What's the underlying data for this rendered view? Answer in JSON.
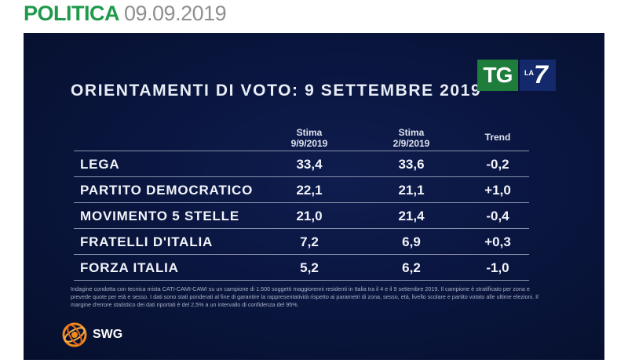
{
  "header": {
    "section": "POLITICA",
    "date": "09.09.2019"
  },
  "panel": {
    "title": "ORIENTAMENTI DI VOTO: 9 SETTEMBRE 2019",
    "broadcaster_logo": {
      "tg": "TG",
      "la": "LA",
      "seven": "7"
    },
    "columns": {
      "estimate_current": {
        "line1": "Stima",
        "line2": "9/9/2019"
      },
      "estimate_previous": {
        "line1": "Stima",
        "line2": "2/9/2019"
      },
      "trend": "Trend"
    },
    "rows": [
      {
        "party": "LEGA",
        "current": "33,4",
        "previous": "33,6",
        "trend": "-0,2"
      },
      {
        "party": "PARTITO DEMOCRATICO",
        "current": "22,1",
        "previous": "21,1",
        "trend": "+1,0"
      },
      {
        "party": "MOVIMENTO 5 STELLE",
        "current": "21,0",
        "previous": "21,4",
        "trend": "-0,4"
      },
      {
        "party": "FRATELLI D'ITALIA",
        "current": "7,2",
        "previous": "6,9",
        "trend": "+0,3"
      },
      {
        "party": "FORZA ITALIA",
        "current": "5,2",
        "previous": "6,2",
        "trend": "-1,0"
      }
    ],
    "footnote": "Indagine condotta con tecnica mista CATI-CAMI-CAWI su un campione di 1.500 soggetti maggiorenni residenti in Italia tra il 4 e il 9 settembre 2019. Il campione è stratificato per zona e prevede quote per età e sesso. I dati sono stati ponderati al fine di garantire la rappresentatività rispetto ai parametri di zona, sesso, età, livello scolare e partito votato alle ultime elezioni. Il margine d'errore statistico dei dati riportati è del 2,5% a un intervallo di confidenza del 95%.",
    "pollster_label": "SWG"
  },
  "colors": {
    "section_green": "#1f9a4a",
    "date_gray": "#8d8f91",
    "panel_navy": "#0a1640",
    "tg_green": "#1f7d3c",
    "la7_blue": "#14296b",
    "swg_orange": "#f08a1c"
  },
  "icons": {
    "pollster": "swg-globe-icon"
  }
}
